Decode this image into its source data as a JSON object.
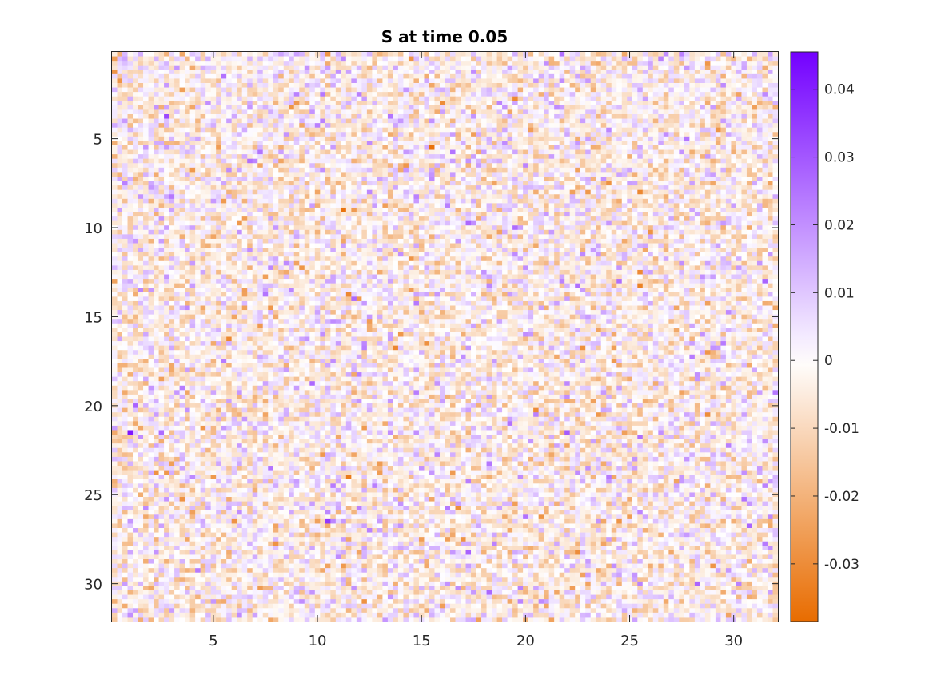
{
  "chart_data": {
    "type": "heatmap",
    "title": "S at time 0.05",
    "xlabel": "",
    "ylabel": "",
    "x_range": [
      0.125,
      32.125
    ],
    "y_range": [
      0.125,
      32.125
    ],
    "y_reversed": true,
    "grid_cells": 128,
    "x_ticks": [
      5,
      10,
      15,
      20,
      25,
      30
    ],
    "y_ticks": [
      5,
      10,
      15,
      20,
      25,
      30
    ],
    "x_tick_labels": [
      "5",
      "10",
      "15",
      "20",
      "25",
      "30"
    ],
    "y_tick_labels": [
      "5",
      "10",
      "15",
      "20",
      "25",
      "30"
    ],
    "color_range": [
      -0.0385,
      0.0455
    ],
    "colorbar_ticks": [
      0.04,
      0.03,
      0.02,
      0.01,
      0,
      -0.01,
      -0.02,
      -0.03
    ],
    "colorbar_tick_labels": [
      "0.04",
      "0.03",
      "0.02",
      "0.01",
      "0",
      "-0.01",
      "-0.02",
      "-0.03"
    ],
    "colormap": {
      "low": "#e86c00",
      "mid": "#ffffff",
      "high": "#7300ff"
    },
    "noise_std": 0.009
  }
}
